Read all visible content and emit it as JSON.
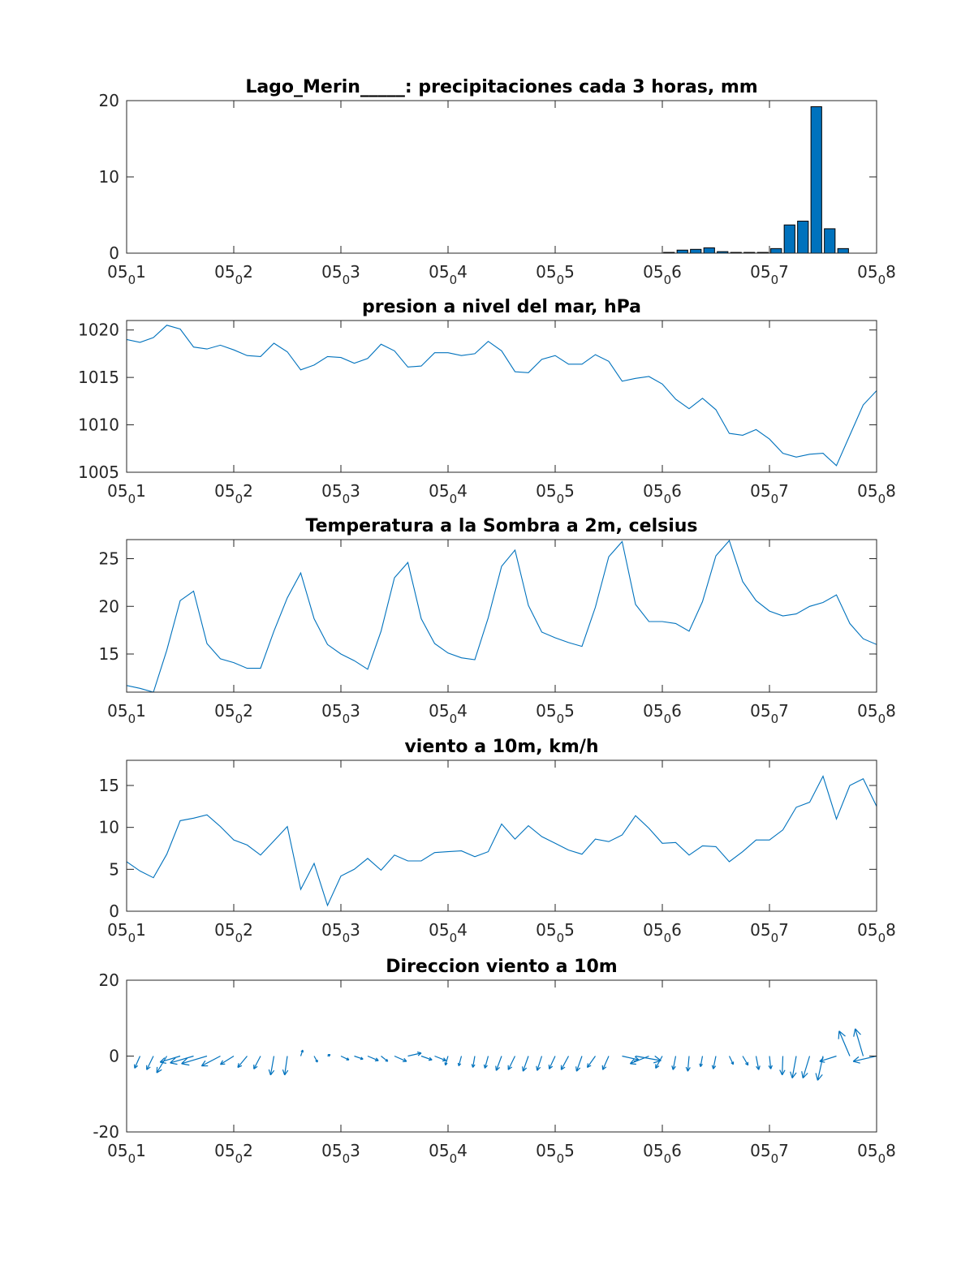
{
  "colors": {
    "series": "#0072BD",
    "axis": "#262626",
    "background": "#ffffff"
  },
  "chart_data": [
    {
      "type": "bar",
      "title": "Lago_Merin_____: precipitaciones cada 3 horas, mm",
      "ylim": [
        0,
        20
      ],
      "yticks": [
        "0",
        "10",
        "20"
      ],
      "xlim": [
        1,
        8
      ],
      "xticks": [
        {
          "pre": "05",
          "sub": "0",
          "post": "1"
        },
        {
          "pre": "05",
          "sub": "0",
          "post": "2"
        },
        {
          "pre": "05",
          "sub": "0",
          "post": "3"
        },
        {
          "pre": "05",
          "sub": "0",
          "post": "4"
        },
        {
          "pre": "05",
          "sub": "0",
          "post": "5"
        },
        {
          "pre": "05",
          "sub": "0",
          "post": "6"
        },
        {
          "pre": "05",
          "sub": "0",
          "post": "7"
        },
        {
          "pre": "05",
          "sub": "0",
          "post": "8"
        }
      ],
      "grid": false,
      "values": [
        0,
        0,
        0,
        0,
        0,
        0,
        0,
        0,
        0,
        0,
        0,
        0,
        0,
        0,
        0,
        0,
        0,
        0,
        0,
        0,
        0,
        0,
        0,
        0,
        0,
        0,
        0,
        0,
        0,
        0,
        0,
        0,
        0,
        0,
        0,
        0,
        0,
        0,
        0,
        0,
        0.1,
        0.4,
        0.5,
        0.7,
        0.2,
        0.1,
        0.1,
        0.1,
        0.6,
        3.7,
        4.2,
        19.2,
        3.2,
        0.6
      ]
    },
    {
      "type": "line",
      "title": "presion a nivel del mar, hPa",
      "ylim": [
        1005,
        1021
      ],
      "yticks": [
        "1005",
        "1010",
        "1015",
        "1020"
      ],
      "xlim": [
        1,
        8
      ],
      "xticks": [
        {
          "pre": "05",
          "sub": "0",
          "post": "1"
        },
        {
          "pre": "05",
          "sub": "0",
          "post": "2"
        },
        {
          "pre": "05",
          "sub": "0",
          "post": "3"
        },
        {
          "pre": "05",
          "sub": "0",
          "post": "4"
        },
        {
          "pre": "05",
          "sub": "0",
          "post": "5"
        },
        {
          "pre": "05",
          "sub": "0",
          "post": "6"
        },
        {
          "pre": "05",
          "sub": "0",
          "post": "7"
        },
        {
          "pre": "05",
          "sub": "0",
          "post": "8"
        }
      ],
      "grid": false,
      "values": [
        1019.0,
        1018.7,
        1019.2,
        1020.5,
        1020.1,
        1018.2,
        1018.0,
        1018.4,
        1017.9,
        1017.3,
        1017.2,
        1018.6,
        1017.7,
        1015.8,
        1016.3,
        1017.2,
        1017.1,
        1016.5,
        1017.0,
        1018.5,
        1017.8,
        1016.1,
        1016.2,
        1017.6,
        1017.6,
        1017.3,
        1017.5,
        1018.8,
        1017.8,
        1015.6,
        1015.5,
        1016.9,
        1017.3,
        1016.4,
        1016.4,
        1017.4,
        1016.7,
        1014.6,
        1014.9,
        1015.1,
        1014.3,
        1012.7,
        1011.7,
        1012.8,
        1011.6,
        1009.1,
        1008.9,
        1009.5,
        1008.5,
        1007.0,
        1006.6,
        1006.9,
        1007.0,
        1005.7,
        1008.9,
        1012.1,
        1013.6
      ]
    },
    {
      "type": "line",
      "title": "Temperatura a la Sombra a 2m, celsius",
      "ylim": [
        11,
        27
      ],
      "yticks": [
        "15",
        "20",
        "25"
      ],
      "xlim": [
        1,
        8
      ],
      "xticks": [
        {
          "pre": "05",
          "sub": "0",
          "post": "1"
        },
        {
          "pre": "05",
          "sub": "0",
          "post": "2"
        },
        {
          "pre": "05",
          "sub": "0",
          "post": "3"
        },
        {
          "pre": "05",
          "sub": "0",
          "post": "4"
        },
        {
          "pre": "05",
          "sub": "0",
          "post": "5"
        },
        {
          "pre": "05",
          "sub": "0",
          "post": "6"
        },
        {
          "pre": "05",
          "sub": "0",
          "post": "7"
        },
        {
          "pre": "05",
          "sub": "0",
          "post": "8"
        }
      ],
      "grid": false,
      "values": [
        11.7,
        11.4,
        11.0,
        15.4,
        20.6,
        21.6,
        16.1,
        14.5,
        14.1,
        13.5,
        13.5,
        17.4,
        20.9,
        23.5,
        18.7,
        16.0,
        15.0,
        14.3,
        13.4,
        17.4,
        23.0,
        24.6,
        18.7,
        16.1,
        15.1,
        14.6,
        14.4,
        18.8,
        24.2,
        25.9,
        20.1,
        17.3,
        16.7,
        16.2,
        15.8,
        19.9,
        25.2,
        26.8,
        20.2,
        18.4,
        18.4,
        18.2,
        17.4,
        20.5,
        25.3,
        26.9,
        22.6,
        20.6,
        19.5,
        19.0,
        19.2,
        20.0,
        20.4,
        21.2,
        18.2,
        16.6,
        16.0
      ]
    },
    {
      "type": "line",
      "title": "viento a 10m, km/h",
      "ylim": [
        0,
        18
      ],
      "yticks": [
        "0",
        "5",
        "10",
        "15"
      ],
      "xlim": [
        1,
        8
      ],
      "xticks": [
        {
          "pre": "05",
          "sub": "0",
          "post": "1"
        },
        {
          "pre": "05",
          "sub": "0",
          "post": "2"
        },
        {
          "pre": "05",
          "sub": "0",
          "post": "3"
        },
        {
          "pre": "05",
          "sub": "0",
          "post": "4"
        },
        {
          "pre": "05",
          "sub": "0",
          "post": "5"
        },
        {
          "pre": "05",
          "sub": "0",
          "post": "6"
        },
        {
          "pre": "05",
          "sub": "0",
          "post": "7"
        },
        {
          "pre": "05",
          "sub": "0",
          "post": "8"
        }
      ],
      "grid": false,
      "values": [
        5.9,
        4.8,
        4.0,
        6.8,
        10.8,
        11.1,
        11.5,
        10.1,
        8.5,
        7.9,
        6.7,
        8.4,
        10.1,
        2.6,
        5.7,
        0.7,
        4.2,
        5.0,
        6.3,
        4.9,
        6.7,
        6.0,
        6.0,
        7.0,
        7.1,
        7.2,
        6.5,
        7.1,
        10.4,
        8.6,
        10.2,
        8.9,
        8.1,
        7.3,
        6.8,
        8.6,
        8.3,
        9.1,
        11.4,
        9.9,
        8.1,
        8.2,
        6.7,
        7.8,
        7.7,
        5.9,
        7.1,
        8.5,
        8.5,
        9.7,
        12.4,
        13.0,
        16.1,
        11.0,
        15.0,
        15.8,
        12.5
      ]
    },
    {
      "type": "quiver",
      "title": "Direccion viento a 10m",
      "ylim": [
        -20,
        20
      ],
      "yticks": [
        "-20",
        "0",
        "20"
      ],
      "xlim": [
        1,
        8
      ],
      "xticks": [
        {
          "pre": "05",
          "sub": "0",
          "post": "1"
        },
        {
          "pre": "05",
          "sub": "0",
          "post": "2"
        },
        {
          "pre": "05",
          "sub": "0",
          "post": "3"
        },
        {
          "pre": "05",
          "sub": "0",
          "post": "4"
        },
        {
          "pre": "05",
          "sub": "0",
          "post": "5"
        },
        {
          "pre": "05",
          "sub": "0",
          "post": "6"
        },
        {
          "pre": "05",
          "sub": "0",
          "post": "7"
        },
        {
          "pre": "05",
          "sub": "0",
          "post": "8"
        }
      ],
      "grid": false,
      "u": [
        -1.2,
        -0.8,
        -1.0,
        -1.5,
        -3.0,
        -3.5,
        -3.8,
        -2.8,
        -2.0,
        -1.4,
        -1.0,
        -0.5,
        -0.4,
        0.3,
        0.5,
        0.4,
        1.2,
        1.3,
        1.6,
        1.0,
        1.8,
        2.0,
        1.6,
        1.7,
        -0.4,
        -0.4,
        -0.3,
        -0.5,
        -0.8,
        -1.0,
        -0.8,
        -0.7,
        -0.9,
        -1.1,
        -0.8,
        -1.2,
        -0.9,
        2.5,
        3.8,
        -2.8,
        -1.0,
        -0.4,
        -0.2,
        -0.3,
        -0.4,
        0.6,
        0.8,
        0.4,
        0.2,
        -0.1,
        -0.6,
        -1.0,
        -0.8,
        -2.5,
        -1.6,
        -1.2,
        -3.5
      ],
      "v": [
        -0.7,
        -1.6,
        -1.8,
        -2.2,
        -0.8,
        -0.9,
        -1.0,
        -1.3,
        -1.1,
        -1.5,
        -1.7,
        -2.5,
        -2.5,
        0.8,
        -0.8,
        0.2,
        -0.5,
        -0.4,
        -0.6,
        -0.7,
        -0.7,
        0.4,
        -0.5,
        -0.6,
        -1.2,
        -1.3,
        -1.5,
        -1.6,
        -1.9,
        -1.8,
        -2.0,
        -1.9,
        -1.7,
        -1.8,
        -2.0,
        -1.5,
        -1.8,
        -0.5,
        -0.6,
        -1.0,
        -1.6,
        -1.8,
        -2.0,
        -1.4,
        -1.7,
        -1.1,
        -1.2,
        -1.8,
        -1.7,
        -2.5,
        -2.9,
        -2.9,
        -3.2,
        -0.7,
        3.3,
        3.6,
        -0.7
      ]
    }
  ]
}
